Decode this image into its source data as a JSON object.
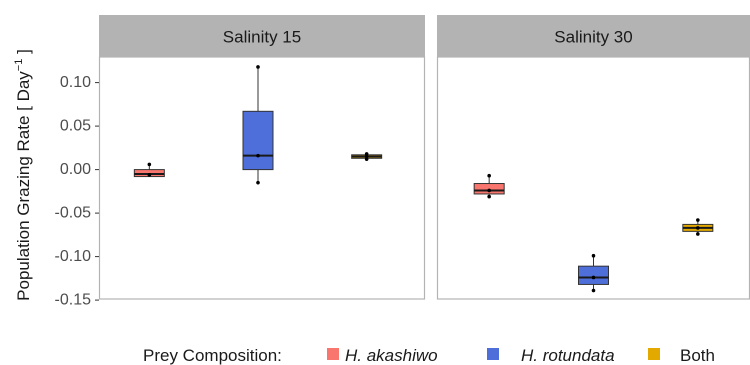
{
  "chart_data": {
    "type": "boxplot",
    "ylabel": "Population Grazing Rate [ Day",
    "ylabel_exponent": "−1",
    "ylabel_close": " ]",
    "yticks": [
      "0.10",
      "0.05",
      "0.00",
      "-0.05",
      "-0.10",
      "-0.15"
    ],
    "ylim": [
      -0.15,
      0.13
    ],
    "facets": [
      {
        "label": "Salinity 15",
        "boxes": [
          {
            "group": "H. akashiwo",
            "color": "#F8766D",
            "q1": -0.008,
            "median": -0.005,
            "q3": 0.0,
            "whisker_low": -0.008,
            "whisker_high": 0.006,
            "points": [
              0.006,
              -0.006
            ]
          },
          {
            "group": "H. rotundata",
            "color": "#4E6FD9",
            "q1": 0.0,
            "median": 0.016,
            "q3": 0.067,
            "whisker_low": -0.015,
            "whisker_high": 0.118,
            "points": [
              0.118,
              0.016,
              -0.015
            ]
          },
          {
            "group": "Both",
            "color": "#E3A900",
            "q1": 0.013,
            "median": 0.015,
            "q3": 0.017,
            "whisker_low": 0.011,
            "whisker_high": 0.019,
            "points": [
              0.018,
              0.015,
              0.012
            ]
          }
        ]
      },
      {
        "label": "Salinity 30",
        "boxes": [
          {
            "group": "H. akashiwo",
            "color": "#F8766D",
            "q1": -0.028,
            "median": -0.024,
            "q3": -0.016,
            "whisker_low": -0.031,
            "whisker_high": -0.007,
            "points": [
              -0.007,
              -0.024,
              -0.031
            ]
          },
          {
            "group": "H. rotundata",
            "color": "#4E6FD9",
            "q1": -0.132,
            "median": -0.124,
            "q3": -0.111,
            "whisker_low": -0.139,
            "whisker_high": -0.099,
            "points": [
              -0.099,
              -0.124,
              -0.139
            ]
          },
          {
            "group": "Both",
            "color": "#E3A900",
            "q1": -0.071,
            "median": -0.067,
            "q3": -0.063,
            "whisker_low": -0.075,
            "whisker_high": -0.058,
            "points": [
              -0.058,
              -0.067,
              -0.074
            ]
          }
        ]
      }
    ],
    "legend": {
      "title": "Prey Composition:",
      "position": "bottom",
      "items": [
        {
          "label": "H. akashiwo",
          "color": "#F8766D",
          "italic": true
        },
        {
          "label": "H. rotundata",
          "color": "#4E6FD9",
          "italic": true
        },
        {
          "label": "Both",
          "color": "#E3A900",
          "italic": false
        }
      ]
    },
    "panel_background": "#ffffff",
    "strip_background": "#B3B3B3",
    "grid": false
  }
}
